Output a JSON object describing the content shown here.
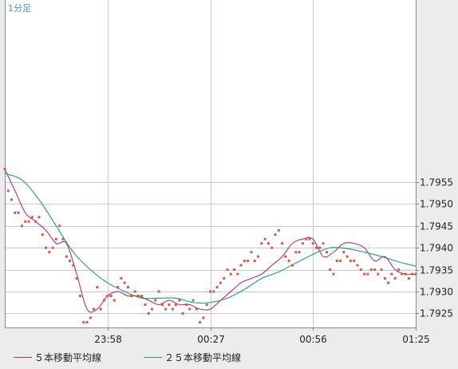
{
  "chart_data": {
    "type": "line",
    "period_label": "1分足",
    "ylim": [
      1.79218,
      1.79966
    ],
    "y_ticks": [
      "1.7955",
      "1.7950",
      "1.7945",
      "1.7940",
      "1.7935",
      "1.7930",
      "1.7925"
    ],
    "x_ticks": [
      "23:58",
      "00:27",
      "00:56",
      "01:25"
    ],
    "grid": true,
    "legend_position": "bottom",
    "colors": {
      "ma5": "#b0307a",
      "ma25": "#1f9e72",
      "price": "#d55a45",
      "grid": "#c8c8c8",
      "plot_bg": "#ffffff"
    },
    "series": [
      {
        "name": "５本移動平均線",
        "key": "ma5",
        "x": [
          0,
          3,
          6,
          9,
          12,
          15,
          18,
          21,
          24,
          27,
          30,
          33,
          36,
          39,
          42,
          45,
          48,
          51,
          54,
          57,
          60,
          63,
          66,
          69,
          72,
          75,
          78,
          81,
          84,
          87,
          90,
          93,
          96,
          99,
          102,
          105,
          108,
          111,
          114,
          117,
          120
        ],
        "y": [
          1.7958,
          1.7953,
          1.7948,
          1.7946,
          1.7944,
          1.7941,
          1.7941,
          1.7934,
          1.7926,
          1.7926,
          1.7929,
          1.793,
          1.7929,
          1.7929,
          1.7928,
          1.7927,
          1.7928,
          1.7927,
          1.7927,
          1.7926,
          1.7926,
          1.7928,
          1.793,
          1.7932,
          1.7933,
          1.7934,
          1.7936,
          1.7938,
          1.7941,
          1.7942,
          1.7942,
          1.7938,
          1.7939,
          1.7941,
          1.7941,
          1.794,
          1.7937,
          1.7938,
          1.7935,
          1.7934,
          1.7934
        ]
      },
      {
        "name": "２５本移動平均線",
        "key": "ma25",
        "x": [
          0,
          5,
          10,
          15,
          20,
          25,
          30,
          35,
          40,
          45,
          50,
          55,
          60,
          65,
          70,
          75,
          80,
          85,
          90,
          95,
          100,
          105,
          110,
          115,
          120
        ],
        "y": [
          1.7957,
          1.79555,
          1.7951,
          1.7945,
          1.7939,
          1.7935,
          1.7932,
          1.793,
          1.79285,
          1.79285,
          1.79285,
          1.79275,
          1.79275,
          1.79285,
          1.79305,
          1.7933,
          1.79345,
          1.79365,
          1.79385,
          1.794,
          1.79398,
          1.7939,
          1.7938,
          1.79368,
          1.79358
        ]
      },
      {
        "name": "price",
        "key": "price",
        "x": [
          0,
          1,
          2,
          3,
          4,
          5,
          6,
          7,
          8,
          9,
          10,
          11,
          12,
          13,
          14,
          15,
          16,
          17,
          18,
          19,
          20,
          21,
          22,
          23,
          24,
          25,
          26,
          27,
          28,
          29,
          30,
          31,
          32,
          33,
          34,
          35,
          36,
          37,
          38,
          39,
          40,
          41,
          42,
          43,
          44,
          45,
          46,
          47,
          48,
          49,
          50,
          51,
          52,
          53,
          54,
          55,
          56,
          57,
          58,
          59,
          60,
          61,
          62,
          63,
          64,
          65,
          66,
          67,
          68,
          69,
          70,
          71,
          72,
          73,
          74,
          75,
          76,
          77,
          78,
          79,
          80,
          81,
          82,
          83,
          84,
          85,
          86,
          87,
          88,
          89,
          90,
          91,
          92,
          93,
          94,
          95,
          96,
          97,
          98,
          99,
          100,
          101,
          102,
          103,
          104,
          105,
          106,
          107,
          108,
          109,
          110,
          111,
          112,
          113,
          114,
          115,
          116,
          117,
          118,
          119,
          120
        ],
        "y": [
          1.7958,
          1.7953,
          1.7951,
          1.7948,
          1.7948,
          1.7945,
          1.7946,
          1.7946,
          1.7947,
          1.7946,
          1.7947,
          1.7943,
          1.794,
          1.7939,
          1.794,
          1.7942,
          1.7945,
          1.7942,
          1.7938,
          1.7937,
          1.7936,
          1.7933,
          1.7929,
          1.7923,
          1.7923,
          1.7924,
          1.7926,
          1.7931,
          1.7926,
          1.7928,
          1.7929,
          1.7929,
          1.7928,
          1.7931,
          1.7933,
          1.7932,
          1.7931,
          1.7929,
          1.793,
          1.7929,
          1.7929,
          1.7927,
          1.7925,
          1.7926,
          1.7928,
          1.793,
          1.7927,
          1.7926,
          1.7927,
          1.7926,
          1.7927,
          1.7928,
          1.7925,
          1.7927,
          1.7926,
          1.7928,
          1.7926,
          1.7923,
          1.7924,
          1.7927,
          1.793,
          1.793,
          1.7931,
          1.7932,
          1.7933,
          1.7935,
          1.7934,
          1.7935,
          1.7934,
          1.7936,
          1.7937,
          1.7937,
          1.7939,
          1.7937,
          1.7938,
          1.7941,
          1.7942,
          1.7941,
          1.794,
          1.7943,
          1.7944,
          1.7941,
          1.7938,
          1.7937,
          1.7936,
          1.7939,
          1.7939,
          1.7941,
          1.7942,
          1.7942,
          1.7941,
          1.794,
          1.794,
          1.7941,
          1.7939,
          1.7935,
          1.7934,
          1.7937,
          1.7937,
          1.7939,
          1.7938,
          1.7937,
          1.7937,
          1.7936,
          1.7935,
          1.7934,
          1.7934,
          1.7935,
          1.7935,
          1.7934,
          1.7935,
          1.7933,
          1.7932,
          1.7934,
          1.7933,
          1.7935,
          1.7934,
          1.7934,
          1.7933,
          1.7934,
          1.7934
        ]
      }
    ]
  },
  "legend": [
    {
      "label": "５本移動平均線",
      "color": "#b0307a"
    },
    {
      "label": "２５本移動平均線",
      "color": "#1f9e72"
    }
  ]
}
